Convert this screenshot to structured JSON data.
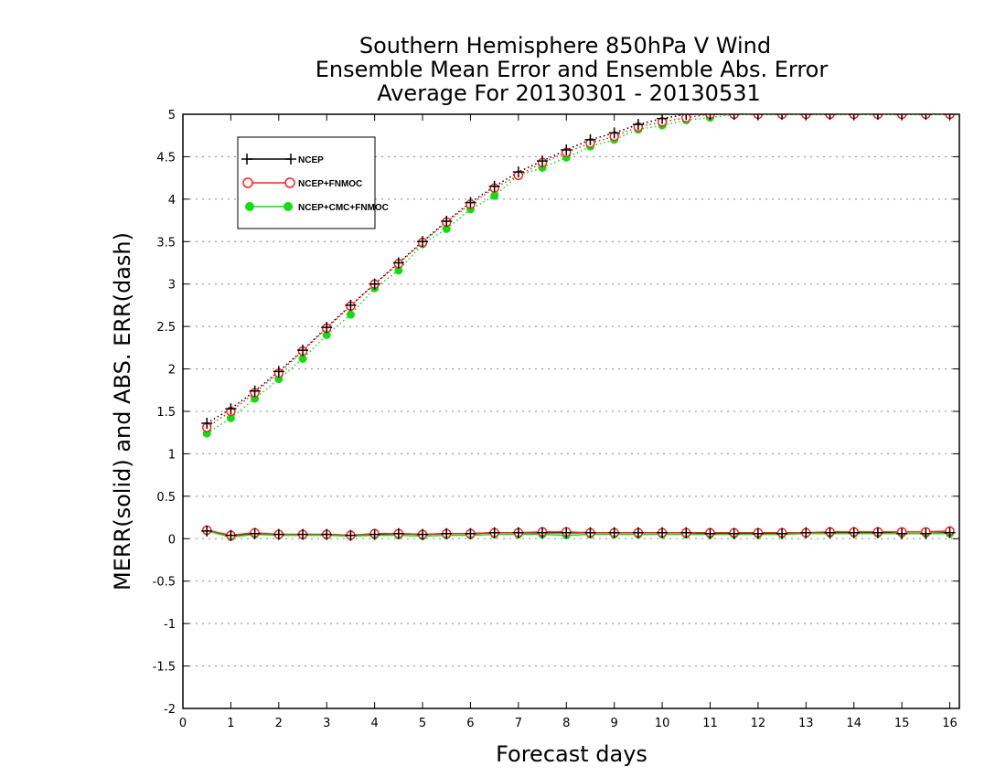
{
  "chart_data": {
    "type": "line",
    "title": [
      "Southern Hemisphere 850hPa V Wind",
      "Ensemble Mean Error and Ensemble Abs. Error",
      "Average For 20130301 - 20130531"
    ],
    "xlabel": "Forecast days",
    "ylabel": "MERR(solid) and ABS. ERR(dash)",
    "xlim": [
      0,
      16.2
    ],
    "ylim": [
      -2,
      5
    ],
    "xticks": [
      "0",
      "1",
      "2",
      "3",
      "4",
      "5",
      "6",
      "7",
      "8",
      "9",
      "10",
      "11",
      "12",
      "13",
      "14",
      "15",
      "16"
    ],
    "yticks": [
      "-2",
      "-1.5",
      "-1",
      "-0.5",
      "0",
      "0.5",
      "1",
      "1.5",
      "2",
      "2.5",
      "3",
      "3.5",
      "4",
      "4.5",
      "5"
    ],
    "grid": "horizontal dotted",
    "legend_position": "top-left",
    "x": [
      0.5,
      1,
      1.5,
      2,
      2.5,
      3,
      3.5,
      4,
      4.5,
      5,
      5.5,
      6,
      6.5,
      7,
      7.5,
      8,
      8.5,
      9,
      9.5,
      10,
      10.5,
      11,
      11.5,
      12,
      12.5,
      13,
      13.5,
      14,
      14.5,
      15,
      15.5,
      16
    ],
    "series": [
      {
        "name": "NCEP",
        "color": "#000000",
        "marker": "plus",
        "abs_err": [
          1.36,
          1.53,
          1.74,
          1.97,
          2.22,
          2.49,
          2.75,
          3.0,
          3.25,
          3.5,
          3.74,
          3.96,
          4.15,
          4.32,
          4.45,
          4.58,
          4.7,
          4.78,
          4.88,
          4.95,
          5.0,
          5.0,
          5.0,
          5.0,
          5.0,
          5.0,
          5.0,
          5.0,
          5.0,
          5.0,
          5.0,
          5.0
        ],
        "mean_err": [
          0.09,
          0.04,
          0.06,
          0.05,
          0.05,
          0.05,
          0.04,
          0.05,
          0.06,
          0.05,
          0.06,
          0.06,
          0.07,
          0.07,
          0.07,
          0.07,
          0.07,
          0.07,
          0.07,
          0.07,
          0.07,
          0.06,
          0.06,
          0.06,
          0.06,
          0.07,
          0.07,
          0.07,
          0.07,
          0.06,
          0.06,
          0.07
        ]
      },
      {
        "name": "NCEP+FNMOC",
        "color": "#ff2020",
        "marker": "open-circle",
        "abs_err": [
          1.31,
          1.5,
          1.72,
          1.95,
          2.21,
          2.48,
          2.74,
          3.0,
          3.24,
          3.49,
          3.73,
          3.94,
          4.13,
          4.28,
          4.43,
          4.55,
          4.66,
          4.74,
          4.85,
          4.91,
          4.96,
          5.0,
          5.0,
          5.0,
          5.0,
          5.0,
          5.0,
          5.0,
          5.0,
          5.0,
          5.0,
          5.0
        ],
        "mean_err": [
          0.1,
          0.04,
          0.07,
          0.05,
          0.05,
          0.05,
          0.04,
          0.06,
          0.06,
          0.05,
          0.06,
          0.06,
          0.07,
          0.07,
          0.08,
          0.08,
          0.07,
          0.07,
          0.07,
          0.07,
          0.07,
          0.07,
          0.07,
          0.07,
          0.07,
          0.07,
          0.08,
          0.08,
          0.08,
          0.08,
          0.08,
          0.09
        ]
      },
      {
        "name": "NCEP+CMC+FNMOC",
        "color": "#11dd11",
        "marker": "filled-circle",
        "abs_err": [
          1.24,
          1.42,
          1.65,
          1.88,
          2.12,
          2.4,
          2.64,
          2.95,
          3.16,
          3.47,
          3.65,
          3.88,
          4.04,
          4.28,
          4.37,
          4.49,
          4.62,
          4.7,
          4.82,
          4.87,
          4.93,
          4.96,
          5.0,
          5.0,
          5.0,
          5.0,
          5.0,
          5.0,
          5.0,
          5.0,
          5.0,
          5.0
        ],
        "mean_err": [
          0.09,
          0.02,
          0.05,
          0.04,
          0.04,
          0.04,
          0.03,
          0.04,
          0.04,
          0.03,
          0.04,
          0.04,
          0.05,
          0.05,
          0.05,
          0.04,
          0.05,
          0.05,
          0.05,
          0.05,
          0.05,
          0.05,
          0.05,
          0.05,
          0.05,
          0.06,
          0.06,
          0.06,
          0.06,
          0.06,
          0.06,
          0.06
        ]
      }
    ]
  }
}
